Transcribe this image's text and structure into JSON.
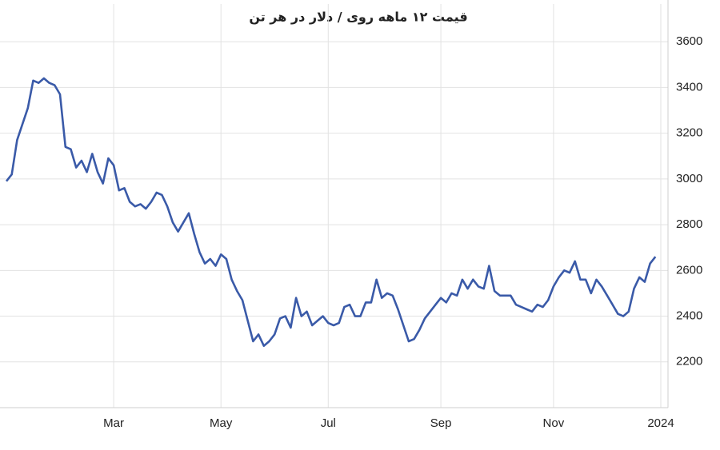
{
  "chart_data": {
    "type": "line",
    "title": "قیمت ۱۲ ماهه روی / دلار در هر تن",
    "categories": [
      null,
      null,
      null,
      null,
      null,
      null,
      null,
      null,
      null,
      null,
      null,
      null,
      null,
      null,
      null,
      null,
      null,
      null,
      null,
      null,
      "Mar",
      null,
      null,
      null,
      null,
      null,
      null,
      null,
      null,
      null,
      null,
      null,
      null,
      null,
      null,
      null,
      null,
      null,
      null,
      null,
      "May",
      null,
      null,
      null,
      null,
      null,
      null,
      null,
      null,
      null,
      null,
      null,
      null,
      null,
      null,
      null,
      null,
      null,
      null,
      null,
      "Jul",
      null,
      null,
      null,
      null,
      null,
      null,
      null,
      null,
      null,
      null,
      null,
      null,
      null,
      null,
      null,
      null,
      null,
      null,
      null,
      null,
      "Sep",
      null,
      null,
      null,
      null,
      null,
      null,
      null,
      null,
      null,
      null,
      null,
      null,
      null,
      null,
      null,
      null,
      null,
      null,
      null,
      null,
      "Nov",
      null,
      null,
      null,
      null,
      null,
      null,
      null,
      null,
      null,
      null,
      null,
      null,
      null,
      null,
      null,
      null,
      null,
      null,
      null,
      "2024"
    ],
    "values": [
      2990,
      3020,
      3170,
      3240,
      3310,
      3430,
      3420,
      3440,
      3420,
      3410,
      3370,
      3140,
      3130,
      3050,
      3080,
      3030,
      3110,
      3030,
      2980,
      3090,
      3060,
      2950,
      2960,
      2900,
      2880,
      2890,
      2870,
      2900,
      2940,
      2930,
      2880,
      2810,
      2770,
      2810,
      2850,
      2760,
      2680,
      2630,
      2650,
      2620,
      2670,
      2650,
      2560,
      2510,
      2470,
      2380,
      2290,
      2320,
      2270,
      2290,
      2320,
      2390,
      2400,
      2350,
      2480,
      2400,
      2420,
      2360,
      2380,
      2400,
      2370,
      2360,
      2370,
      2440,
      2450,
      2400,
      2400,
      2460,
      2460,
      2560,
      2480,
      2500,
      2490,
      2430,
      2360,
      2290,
      2300,
      2340,
      2390,
      2420,
      2450,
      2480,
      2460,
      2500,
      2490,
      2560,
      2520,
      2560,
      2530,
      2520,
      2620,
      2510,
      2490,
      2490,
      2490,
      2450,
      2440,
      2430,
      2420,
      2450,
      2440,
      2470,
      2530,
      2570,
      2600,
      2590,
      2640,
      2560,
      2560,
      2500,
      2560,
      2530,
      2490,
      2450,
      2410,
      2400,
      2420,
      2520,
      2570,
      2550,
      2630,
      2660,
      null
    ],
    "color": "#3a5aa8",
    "ylim": [
      2000,
      3765
    ],
    "yticks": [
      2200,
      2400,
      2600,
      2800,
      3000,
      3200,
      3400,
      3600
    ],
    "grid": true
  }
}
